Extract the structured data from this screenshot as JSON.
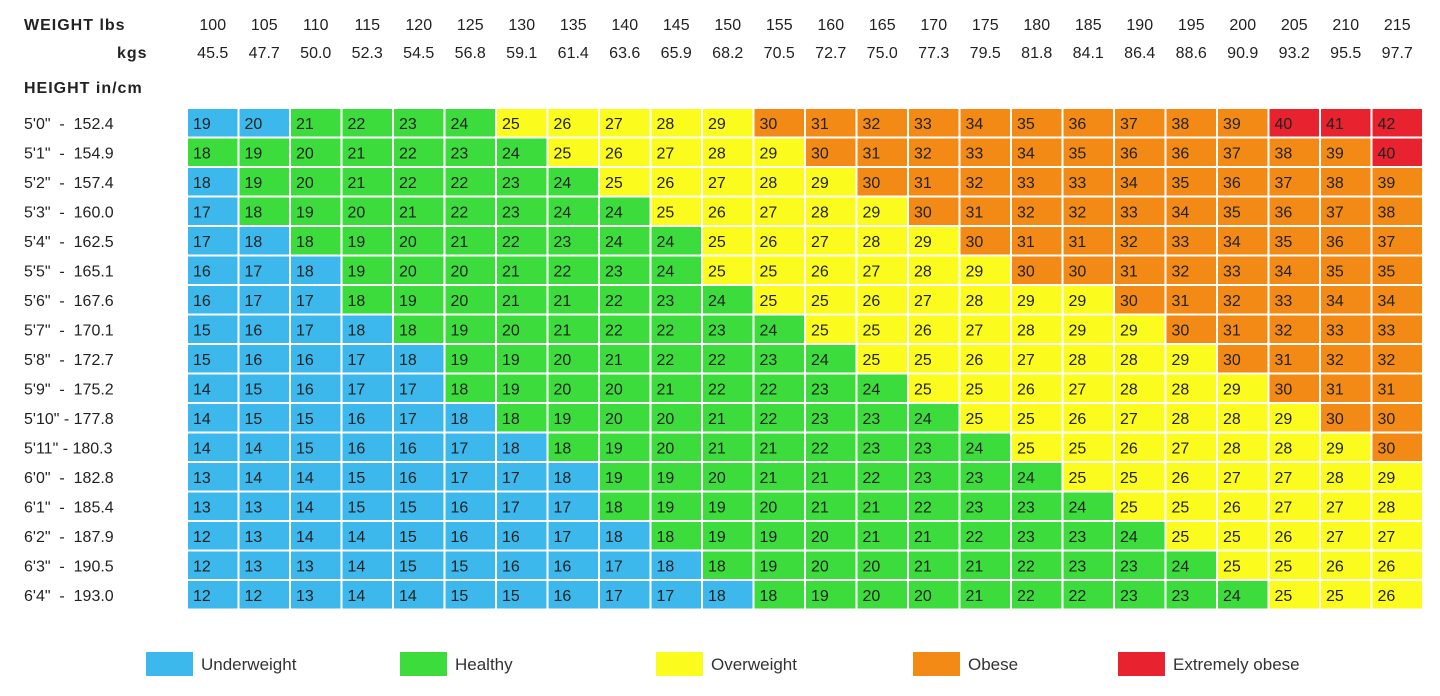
{
  "chart_data": {
    "type": "heatmap",
    "header": {
      "weight_label": "WEIGHT lbs",
      "kgs_label": "kgs",
      "height_label": "HEIGHT in/cm"
    },
    "lbs": [
      "100",
      "105",
      "110",
      "115",
      "120",
      "125",
      "130",
      "135",
      "140",
      "145",
      "150",
      "155",
      "160",
      "165",
      "170",
      "175",
      "180",
      "185",
      "190",
      "195",
      "200",
      "205",
      "210",
      "215"
    ],
    "kgs": [
      "45.5",
      "47.7",
      "50.0",
      "52.3",
      "54.5",
      "56.8",
      "59.1",
      "61.4",
      "63.6",
      "65.9",
      "68.2",
      "70.5",
      "72.7",
      "75.0",
      "77.3",
      "79.5",
      "81.8",
      "84.1",
      "86.4",
      "88.6",
      "90.9",
      "93.2",
      "95.5",
      "97.7"
    ],
    "heights": [
      "5'0\"  -  152.4",
      "5'1\"  -  154.9",
      "5'2\"  -  157.4",
      "5'3\"  -  160.0",
      "5'4\"  -  162.5",
      "5'5\"  -  165.1",
      "5'6\"  -  167.6",
      "5'7\"  -  170.1",
      "5'8\"  -  172.7",
      "5'9\"  -  175.2",
      "5'10\" - 177.8",
      "5'11\" - 180.3",
      "6'0\"  -  182.8",
      "6'1\"  -  185.4",
      "6'2\"  -  187.9",
      "6'3\"  -  190.5",
      "6'4\"  -  193.0"
    ],
    "values": [
      [
        19,
        20,
        21,
        22,
        23,
        24,
        25,
        26,
        27,
        28,
        29,
        30,
        31,
        32,
        33,
        34,
        35,
        36,
        37,
        38,
        39,
        40,
        41,
        42
      ],
      [
        18,
        19,
        20,
        21,
        22,
        23,
        24,
        25,
        26,
        27,
        28,
        29,
        30,
        31,
        32,
        33,
        34,
        35,
        36,
        36,
        37,
        38,
        39,
        40
      ],
      [
        18,
        19,
        20,
        21,
        22,
        22,
        23,
        24,
        25,
        26,
        27,
        28,
        29,
        30,
        31,
        32,
        33,
        33,
        34,
        35,
        36,
        37,
        38,
        39
      ],
      [
        17,
        18,
        19,
        20,
        21,
        22,
        23,
        24,
        24,
        25,
        26,
        27,
        28,
        29,
        30,
        31,
        32,
        32,
        33,
        34,
        35,
        36,
        37,
        38
      ],
      [
        17,
        18,
        18,
        19,
        20,
        21,
        22,
        23,
        24,
        24,
        25,
        26,
        27,
        28,
        29,
        30,
        31,
        31,
        32,
        33,
        34,
        35,
        36,
        37
      ],
      [
        16,
        17,
        18,
        19,
        20,
        20,
        21,
        22,
        23,
        24,
        25,
        25,
        26,
        27,
        28,
        29,
        30,
        30,
        31,
        32,
        33,
        34,
        35,
        35
      ],
      [
        16,
        17,
        17,
        18,
        19,
        20,
        21,
        21,
        22,
        23,
        24,
        25,
        25,
        26,
        27,
        28,
        29,
        29,
        30,
        31,
        32,
        33,
        34,
        34
      ],
      [
        15,
        16,
        17,
        18,
        18,
        19,
        20,
        21,
        22,
        22,
        23,
        24,
        25,
        25,
        26,
        27,
        28,
        29,
        29,
        30,
        31,
        32,
        33,
        33
      ],
      [
        15,
        16,
        16,
        17,
        18,
        19,
        19,
        20,
        21,
        22,
        22,
        23,
        24,
        25,
        25,
        26,
        27,
        28,
        28,
        29,
        30,
        31,
        32,
        32
      ],
      [
        14,
        15,
        16,
        17,
        17,
        18,
        19,
        20,
        20,
        21,
        22,
        22,
        23,
        24,
        25,
        25,
        26,
        27,
        28,
        28,
        29,
        30,
        31,
        31
      ],
      [
        14,
        15,
        15,
        16,
        17,
        18,
        18,
        19,
        20,
        20,
        21,
        22,
        23,
        23,
        24,
        25,
        25,
        26,
        27,
        28,
        28,
        29,
        30,
        30
      ],
      [
        14,
        14,
        15,
        16,
        16,
        17,
        18,
        18,
        19,
        20,
        21,
        21,
        22,
        23,
        23,
        24,
        25,
        25,
        26,
        27,
        28,
        28,
        29,
        30
      ],
      [
        13,
        14,
        14,
        15,
        16,
        17,
        17,
        18,
        19,
        19,
        20,
        21,
        21,
        22,
        23,
        23,
        24,
        25,
        25,
        26,
        27,
        27,
        28,
        29
      ],
      [
        13,
        13,
        14,
        15,
        15,
        16,
        17,
        17,
        18,
        19,
        19,
        20,
        21,
        21,
        22,
        23,
        23,
        24,
        25,
        25,
        26,
        27,
        27,
        28
      ],
      [
        12,
        13,
        14,
        14,
        15,
        16,
        16,
        17,
        18,
        18,
        19,
        19,
        20,
        21,
        21,
        22,
        23,
        23,
        24,
        25,
        25,
        26,
        27,
        27
      ],
      [
        12,
        13,
        13,
        14,
        15,
        15,
        16,
        16,
        17,
        18,
        18,
        19,
        20,
        20,
        21,
        21,
        22,
        23,
        23,
        24,
        25,
        25,
        26,
        26
      ],
      [
        12,
        12,
        13,
        14,
        14,
        15,
        15,
        16,
        17,
        17,
        18,
        18,
        19,
        20,
        20,
        21,
        22,
        22,
        23,
        23,
        24,
        25,
        25,
        26
      ]
    ],
    "categories": [
      [
        0,
        0,
        1,
        1,
        1,
        1,
        2,
        2,
        2,
        2,
        2,
        3,
        3,
        3,
        3,
        3,
        3,
        3,
        3,
        3,
        3,
        4,
        4,
        4
      ],
      [
        1,
        1,
        1,
        1,
        1,
        1,
        1,
        2,
        2,
        2,
        2,
        2,
        3,
        3,
        3,
        3,
        3,
        3,
        3,
        3,
        3,
        3,
        3,
        4
      ],
      [
        0,
        1,
        1,
        1,
        1,
        1,
        1,
        1,
        2,
        2,
        2,
        2,
        2,
        3,
        3,
        3,
        3,
        3,
        3,
        3,
        3,
        3,
        3,
        3
      ],
      [
        0,
        1,
        1,
        1,
        1,
        1,
        1,
        1,
        1,
        2,
        2,
        2,
        2,
        2,
        3,
        3,
        3,
        3,
        3,
        3,
        3,
        3,
        3,
        3
      ],
      [
        0,
        0,
        1,
        1,
        1,
        1,
        1,
        1,
        1,
        1,
        2,
        2,
        2,
        2,
        2,
        3,
        3,
        3,
        3,
        3,
        3,
        3,
        3,
        3
      ],
      [
        0,
        0,
        0,
        1,
        1,
        1,
        1,
        1,
        1,
        1,
        2,
        2,
        2,
        2,
        2,
        2,
        3,
        3,
        3,
        3,
        3,
        3,
        3,
        3
      ],
      [
        0,
        0,
        0,
        1,
        1,
        1,
        1,
        1,
        1,
        1,
        1,
        2,
        2,
        2,
        2,
        2,
        2,
        2,
        3,
        3,
        3,
        3,
        3,
        3
      ],
      [
        0,
        0,
        0,
        0,
        1,
        1,
        1,
        1,
        1,
        1,
        1,
        1,
        2,
        2,
        2,
        2,
        2,
        2,
        2,
        3,
        3,
        3,
        3,
        3
      ],
      [
        0,
        0,
        0,
        0,
        0,
        1,
        1,
        1,
        1,
        1,
        1,
        1,
        1,
        2,
        2,
        2,
        2,
        2,
        2,
        2,
        3,
        3,
        3,
        3
      ],
      [
        0,
        0,
        0,
        0,
        0,
        1,
        1,
        1,
        1,
        1,
        1,
        1,
        1,
        1,
        2,
        2,
        2,
        2,
        2,
        2,
        2,
        3,
        3,
        3
      ],
      [
        0,
        0,
        0,
        0,
        0,
        0,
        1,
        1,
        1,
        1,
        1,
        1,
        1,
        1,
        1,
        2,
        2,
        2,
        2,
        2,
        2,
        2,
        3,
        3
      ],
      [
        0,
        0,
        0,
        0,
        0,
        0,
        0,
        1,
        1,
        1,
        1,
        1,
        1,
        1,
        1,
        1,
        2,
        2,
        2,
        2,
        2,
        2,
        2,
        3
      ],
      [
        0,
        0,
        0,
        0,
        0,
        0,
        0,
        0,
        1,
        1,
        1,
        1,
        1,
        1,
        1,
        1,
        1,
        2,
        2,
        2,
        2,
        2,
        2,
        2
      ],
      [
        0,
        0,
        0,
        0,
        0,
        0,
        0,
        0,
        1,
        1,
        1,
        1,
        1,
        1,
        1,
        1,
        1,
        1,
        2,
        2,
        2,
        2,
        2,
        2
      ],
      [
        0,
        0,
        0,
        0,
        0,
        0,
        0,
        0,
        0,
        1,
        1,
        1,
        1,
        1,
        1,
        1,
        1,
        1,
        1,
        2,
        2,
        2,
        2,
        2
      ],
      [
        0,
        0,
        0,
        0,
        0,
        0,
        0,
        0,
        0,
        0,
        1,
        1,
        1,
        1,
        1,
        1,
        1,
        1,
        1,
        1,
        2,
        2,
        2,
        2
      ],
      [
        0,
        0,
        0,
        0,
        0,
        0,
        0,
        0,
        0,
        0,
        0,
        1,
        1,
        1,
        1,
        1,
        1,
        1,
        1,
        1,
        1,
        2,
        2,
        2
      ]
    ],
    "legend": [
      {
        "label": "Underweight",
        "color": "#3cb8ec"
      },
      {
        "label": "Healthy",
        "color": "#3ddc3d"
      },
      {
        "label": "Overweight",
        "color": "#fbfb1e"
      },
      {
        "label": "Obese",
        "color": "#f48a16"
      },
      {
        "label": "Extremely obese",
        "color": "#e8222f"
      }
    ]
  }
}
